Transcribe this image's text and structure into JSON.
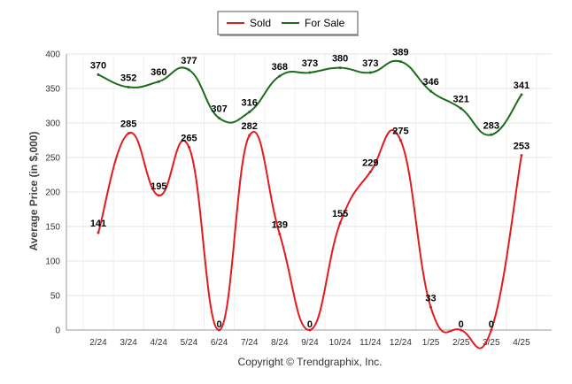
{
  "chart_data": {
    "type": "line",
    "categories": [
      "2/24",
      "3/24",
      "4/24",
      "5/24",
      "6/24",
      "7/24",
      "8/24",
      "9/24",
      "10/24",
      "11/24",
      "12/24",
      "1/25",
      "2/25",
      "3/25",
      "4/25"
    ],
    "series": [
      {
        "name": "Sold",
        "color": "#e41a1c",
        "values": [
          141,
          285,
          195,
          265,
          0,
          282,
          139,
          0,
          155,
          229,
          275,
          33,
          0,
          0,
          253
        ]
      },
      {
        "name": "For Sale",
        "color": "#1a6e1a",
        "values": [
          370,
          352,
          360,
          377,
          307,
          316,
          368,
          373,
          380,
          373,
          389,
          346,
          321,
          283,
          341
        ]
      }
    ],
    "ylabel": "Average Price (in $,000)",
    "ylim": [
      0,
      400
    ],
    "yticks": [
      0,
      50,
      100,
      150,
      200,
      250,
      300,
      350,
      400
    ],
    "grid": true,
    "legend": "top-center",
    "footer": "Copyright © Trendgraphix, Inc."
  }
}
